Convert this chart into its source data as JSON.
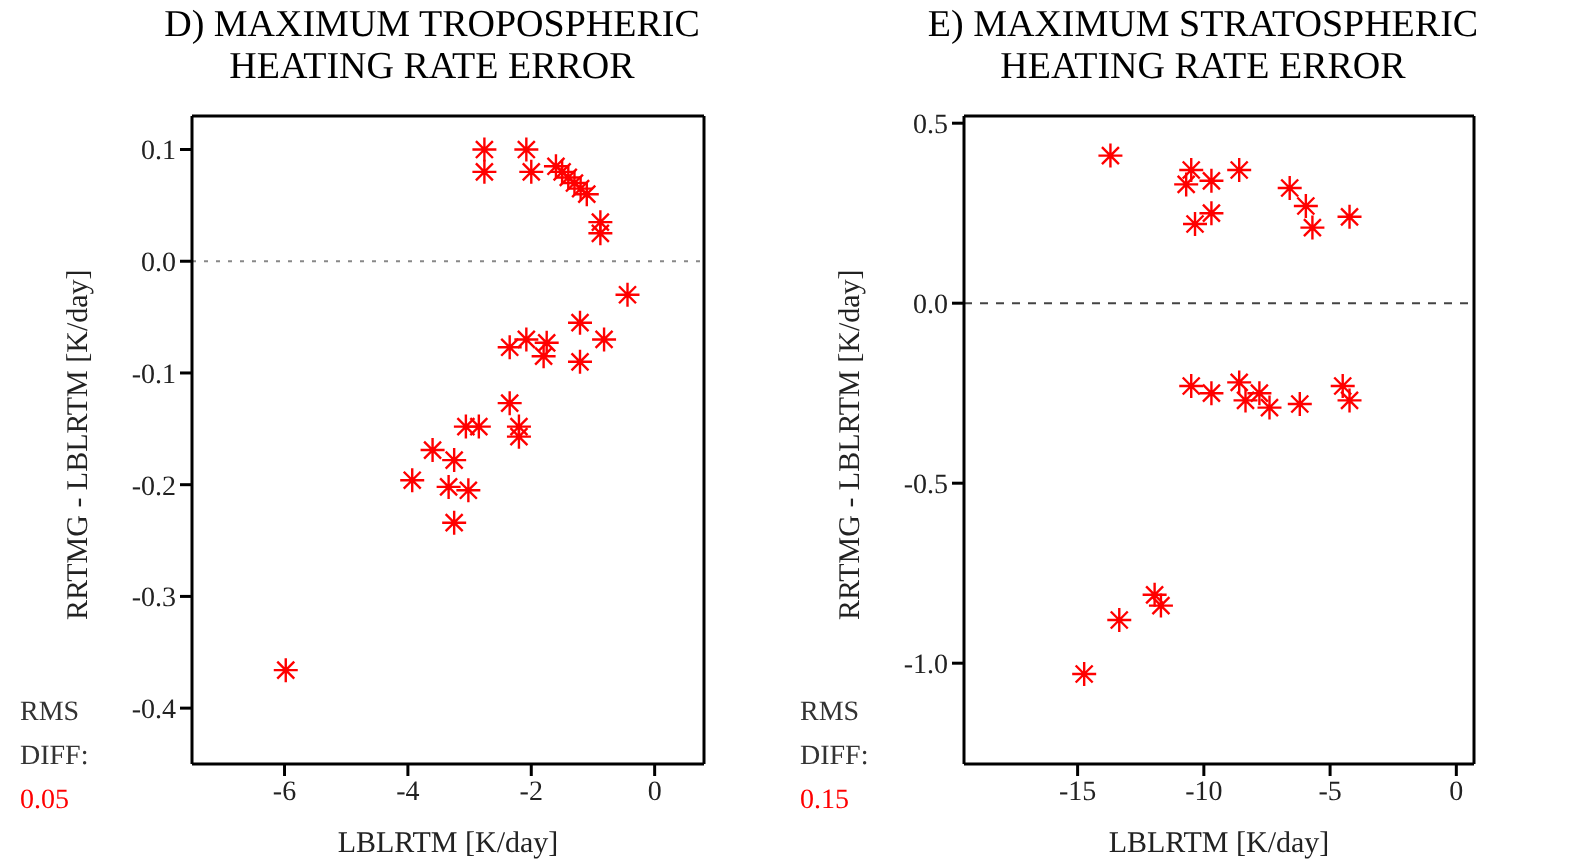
{
  "chart_data": [
    {
      "type": "scatter",
      "title": "D) MAXIMUM TROPOSPHERIC HEATING RATE ERROR",
      "xlabel": "LBLRTM [K/day]",
      "ylabel": "RRTMG - LBLRTM [K/day]",
      "marker": "cross",
      "legend": false,
      "xlim": [
        -7.5,
        0.8
      ],
      "xticks": [
        -6,
        -4,
        -2,
        0
      ],
      "ylim": [
        -0.45,
        0.13
      ],
      "yticks": [
        {
          "value": 0.1,
          "label": "0.1"
        },
        {
          "value": 0,
          "label": "0.0"
        },
        {
          "value": -0.1,
          "label": "-0.1"
        },
        {
          "value": -0.2,
          "label": "-0.2"
        },
        {
          "value": -0.3,
          "label": "-0.3"
        },
        {
          "value": -0.4,
          "label": "-0.4"
        }
      ],
      "ref_lines": [
        {
          "axis": "y",
          "value": 0,
          "line_style": "dotted",
          "color": "#888888"
        }
      ],
      "annotations": [
        "RMS DIFF:",
        "0.05"
      ],
      "series": [
        {
          "color": "#ff0000",
          "x": [
            -2.76,
            -2.76,
            -2.08,
            -2.0,
            -1.6,
            -1.5,
            -1.4,
            -1.3,
            -1.2,
            -1.1,
            -0.88,
            -0.88,
            -0.44,
            -0.82,
            -1.21,
            -1.21,
            -1.75,
            -1.8,
            -2.08,
            -2.35,
            -2.35,
            -2.2,
            -2.2,
            -2.85,
            -3.06,
            -3.6,
            -3.93,
            -3.25,
            -3.34,
            -3.02,
            -3.25,
            -5.98
          ],
          "values": [
            0.1,
            0.08,
            0.1,
            0.08,
            0.085,
            0.08,
            0.075,
            0.07,
            0.065,
            0.06,
            0.035,
            0.025,
            -0.03,
            -0.07,
            -0.055,
            -0.09,
            -0.073,
            -0.085,
            -0.07,
            -0.077,
            -0.127,
            -0.148,
            -0.157,
            -0.148,
            -0.148,
            -0.169,
            -0.196,
            -0.178,
            -0.202,
            -0.205,
            -0.234,
            -0.366
          ]
        }
      ]
    },
    {
      "type": "scatter",
      "title": "E) MAXIMUM STRATOSPHERIC HEATING RATE ERROR",
      "xlabel": "LBLRTM [K/day]",
      "ylabel": "RRTMG - LBLRTM [K/day]",
      "marker": "cross",
      "legend": false,
      "xlim": [
        -19.5,
        0.7
      ],
      "xticks": [
        -15,
        -10,
        -5,
        0
      ],
      "ylim": [
        -1.28,
        0.52
      ],
      "yticks": [
        {
          "value": 0.5,
          "label": "0.5"
        },
        {
          "value": 0,
          "label": "0.0"
        },
        {
          "value": -0.5,
          "label": "-0.5"
        },
        {
          "value": -1,
          "label": "-1.0"
        }
      ],
      "ref_lines": [
        {
          "axis": "y",
          "value": 0,
          "line_style": "dashed",
          "color": "#444444"
        }
      ],
      "annotations": [
        "RMS DIFF:",
        "0.15"
      ],
      "series": [
        {
          "color": "#ff0000",
          "x": [
            -13.7,
            -10.5,
            -10.7,
            -9.7,
            -10.35,
            -9.7,
            -8.6,
            -6.6,
            -5.96,
            -5.7,
            -4.23,
            -10.5,
            -9.7,
            -8.6,
            -7.8,
            -8.35,
            -7.4,
            -6.2,
            -4.5,
            -4.23,
            -11.95,
            -11.7,
            -13.35,
            -14.74
          ],
          "values": [
            0.41,
            0.37,
            0.33,
            0.34,
            0.22,
            0.25,
            0.37,
            0.32,
            0.27,
            0.21,
            0.24,
            -0.23,
            -0.25,
            -0.22,
            -0.25,
            -0.27,
            -0.29,
            -0.28,
            -0.23,
            -0.27,
            -0.81,
            -0.84,
            -0.88,
            -1.03
          ]
        }
      ]
    }
  ]
}
